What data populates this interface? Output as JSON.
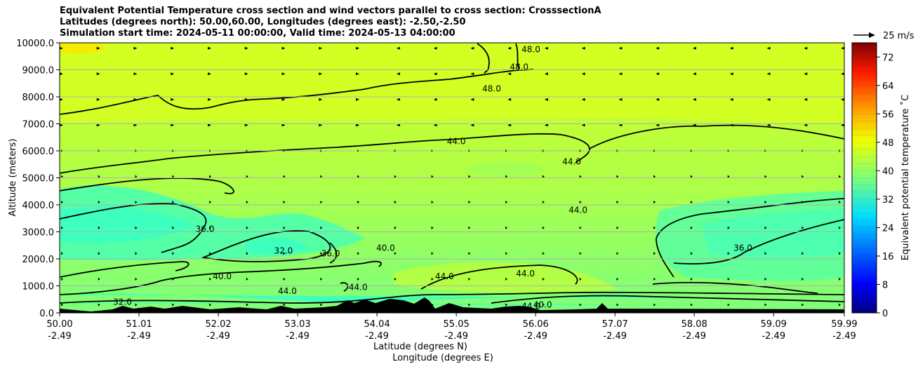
{
  "titles": {
    "line1": "Equivalent Potential Temperature cross section and wind vectors parallel to cross section: CrosssectionA",
    "line2": "Latitudes (degrees north): 50.00,60.00, Longitudes (degrees east): -2.50,-2.50",
    "line3": "Simulation start time: 2024-05-11 00:00:00, Valid time: 2024-05-13 04:00:00"
  },
  "chart_data": {
    "type": "contourf",
    "title": "Equivalent Potential Temperature cross section and wind vectors parallel to cross section: CrosssectionA",
    "ylabel": "Altitude (meters)",
    "xlabel_1": "Latitude (degrees N)",
    "xlabel_2": "Longitude (degrees E)",
    "ylim": [
      0,
      10000
    ],
    "y_ticks": [
      "0.0",
      "1000.0",
      "2000.0",
      "3000.0",
      "4000.0",
      "5000.0",
      "6000.0",
      "7000.0",
      "8000.0",
      "9000.0",
      "10000.0"
    ],
    "x_ticks": [
      {
        "lat": "50.00",
        "lon": "-2.49"
      },
      {
        "lat": "51.01",
        "lon": "-2.49"
      },
      {
        "lat": "52.02",
        "lon": "-2.49"
      },
      {
        "lat": "53.03",
        "lon": "-2.49"
      },
      {
        "lat": "54.04",
        "lon": "-2.49"
      },
      {
        "lat": "55.05",
        "lon": "-2.49"
      },
      {
        "lat": "56.06",
        "lon": "-2.49"
      },
      {
        "lat": "57.07",
        "lon": "-2.49"
      },
      {
        "lat": "58.08",
        "lon": "-2.49"
      },
      {
        "lat": "59.09",
        "lon": "-2.49"
      },
      {
        "lat": "59.99",
        "lon": "-2.49"
      }
    ],
    "grid": "horizontal",
    "colorbar": {
      "label": "Equivalent potential temperature ˚C",
      "range": [
        0,
        76
      ],
      "ticks": [
        "0",
        "8",
        "16",
        "24",
        "32",
        "40",
        "48",
        "56",
        "64",
        "72"
      ],
      "colormap": "jet"
    },
    "quiver_key": {
      "label": "25 m/s",
      "value": 25
    },
    "contour_labels": [
      {
        "text": "48.0",
        "lat": 55.5,
        "z": 8300
      },
      {
        "text": "48.0",
        "lat": 55.85,
        "z": 9100
      },
      {
        "text": "48.0",
        "lat": 56.0,
        "z": 9750
      },
      {
        "text": "44.0",
        "lat": 55.05,
        "z": 6350
      },
      {
        "text": "44.0",
        "lat": 56.52,
        "z": 5600
      },
      {
        "text": "44.0",
        "lat": 56.6,
        "z": 3800
      },
      {
        "text": "36.0",
        "lat": 51.85,
        "z": 3100
      },
      {
        "text": "32.0",
        "lat": 52.85,
        "z": 2300
      },
      {
        "text": "36.0",
        "lat": 53.45,
        "z": 2200
      },
      {
        "text": "40.0",
        "lat": 54.15,
        "z": 2400
      },
      {
        "text": "40.0",
        "lat": 52.07,
        "z": 1350
      },
      {
        "text": "44.0",
        "lat": 52.9,
        "z": 800
      },
      {
        "text": "44.0",
        "lat": 53.8,
        "z": 950
      },
      {
        "text": "32.0",
        "lat": 50.8,
        "z": 400
      },
      {
        "text": "44.0",
        "lat": 54.9,
        "z": 1350
      },
      {
        "text": "44.0",
        "lat": 55.93,
        "z": 1450
      },
      {
        "text": "36.0",
        "lat": 58.7,
        "z": 2400
      },
      {
        "text": "44.0",
        "lat": 56.0,
        "z": 250
      },
      {
        "text": "40.0",
        "lat": 56.15,
        "z": 300
      }
    ]
  }
}
